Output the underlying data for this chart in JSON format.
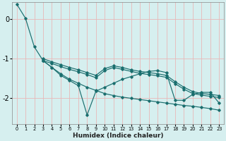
{
  "xlabel": "Humidex (Indice chaleur)",
  "ylabel": "",
  "bg_color": "#d6efef",
  "grid_color": "#e8b8b8",
  "line_color": "#1a6e6e",
  "xlim": [
    -0.5,
    23.5
  ],
  "ylim": [
    -2.65,
    0.42
  ],
  "yticks": [
    0,
    -1,
    -2
  ],
  "ytick_labels": [
    "0",
    "-1",
    "-2"
  ],
  "xticks": [
    0,
    1,
    2,
    3,
    4,
    5,
    6,
    7,
    8,
    9,
    10,
    11,
    12,
    13,
    14,
    15,
    16,
    17,
    18,
    19,
    20,
    21,
    22,
    23
  ],
  "lines": [
    {
      "x": [
        0,
        1,
        2,
        3,
        4,
        5,
        6,
        7,
        8,
        9,
        10,
        11,
        12,
        13,
        14,
        15,
        16,
        17,
        18,
        19,
        20,
        21,
        22,
        23
      ],
      "y": [
        0.38,
        0.02,
        -0.7,
        -1.05,
        -1.22,
        -1.38,
        -1.52,
        -1.62,
        -1.72,
        -1.8,
        -1.88,
        -1.93,
        -1.97,
        -2.0,
        -2.03,
        -2.06,
        -2.09,
        -2.12,
        -2.15,
        -2.18,
        -2.2,
        -2.23,
        -2.26,
        -2.3
      ]
    },
    {
      "x": [
        3,
        4,
        5,
        6,
        7,
        8,
        9,
        10,
        11,
        12,
        13,
        14,
        15,
        16,
        17,
        18,
        19,
        20,
        21,
        22,
        23
      ],
      "y": [
        -1.05,
        -1.22,
        -1.42,
        -1.55,
        -1.68,
        -2.42,
        -1.82,
        -1.72,
        -1.62,
        -1.52,
        -1.45,
        -1.38,
        -1.32,
        -1.3,
        -1.35,
        -2.05,
        -2.05,
        -1.9,
        -1.85,
        -1.85,
        -2.12
      ]
    },
    {
      "x": [
        3,
        4,
        5,
        6,
        7,
        8,
        9,
        10,
        11,
        12,
        13,
        14,
        15,
        16,
        17,
        18,
        19,
        20,
        21,
        22,
        23
      ],
      "y": [
        -1.0,
        -1.08,
        -1.15,
        -1.22,
        -1.28,
        -1.35,
        -1.42,
        -1.25,
        -1.18,
        -1.22,
        -1.28,
        -1.32,
        -1.35,
        -1.38,
        -1.42,
        -1.58,
        -1.72,
        -1.83,
        -1.88,
        -1.9,
        -1.93
      ]
    },
    {
      "x": [
        3,
        4,
        5,
        6,
        7,
        8,
        9,
        10,
        11,
        12,
        13,
        14,
        15,
        16,
        17,
        18,
        19,
        20,
        21,
        22,
        23
      ],
      "y": [
        -1.05,
        -1.12,
        -1.2,
        -1.27,
        -1.33,
        -1.4,
        -1.48,
        -1.3,
        -1.22,
        -1.27,
        -1.32,
        -1.37,
        -1.4,
        -1.43,
        -1.47,
        -1.63,
        -1.77,
        -1.88,
        -1.92,
        -1.95,
        -1.98
      ]
    }
  ]
}
